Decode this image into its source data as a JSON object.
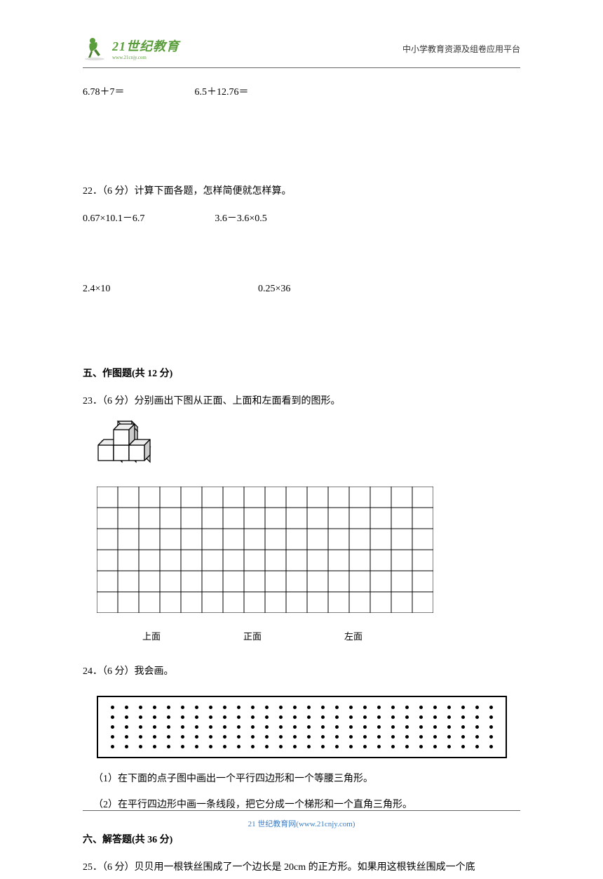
{
  "header": {
    "logo_main": "21世纪教育",
    "logo_sub": "www.21cnjy.com",
    "right_text": "中小学教育资源及组卷应用平台"
  },
  "math_problems": {
    "row1_left": "6.78＋7＝",
    "row1_right": "6.5＋12.76＝"
  },
  "q22": {
    "title": "22．（6 分）计算下面各题，怎样简便就怎样算。",
    "row1_left": "0.67×10.1－6.7",
    "row1_right": "3.6－3.6×0.5",
    "row2_left": "2.4×10",
    "row2_right": "0.25×36"
  },
  "section5": {
    "title": "五、作图题(共 12 分)"
  },
  "q23": {
    "title": "23．（6 分）分别画出下图从正面、上面和左面看到的图形。",
    "grid": {
      "cols": 16,
      "rows": 6,
      "cell_size": 30
    },
    "labels": {
      "label1": "上面",
      "label2": "正面",
      "label3": "左面",
      "pos1": 65,
      "pos2": 150,
      "pos3": 140
    }
  },
  "q24": {
    "title": "24．（6 分）我会画。",
    "dot_grid": {
      "rows": 5,
      "cols": 28
    },
    "sub1": "（1）在下面的点子图中画出一个平行四边形和一个等腰三角形。",
    "sub2": "（2）在平行四边形中画一条线段，把它分成一个梯形和一个直角三角形。"
  },
  "section6": {
    "title": "六、解答题(共 36 分)"
  },
  "q25": {
    "title": "25．（6 分）贝贝用一根铁丝围成了一个边长是 20cm 的正方形。如果用这根铁丝围成一个底"
  },
  "footer": {
    "text": "21 世纪教育网(www.21cnjy.com)"
  }
}
